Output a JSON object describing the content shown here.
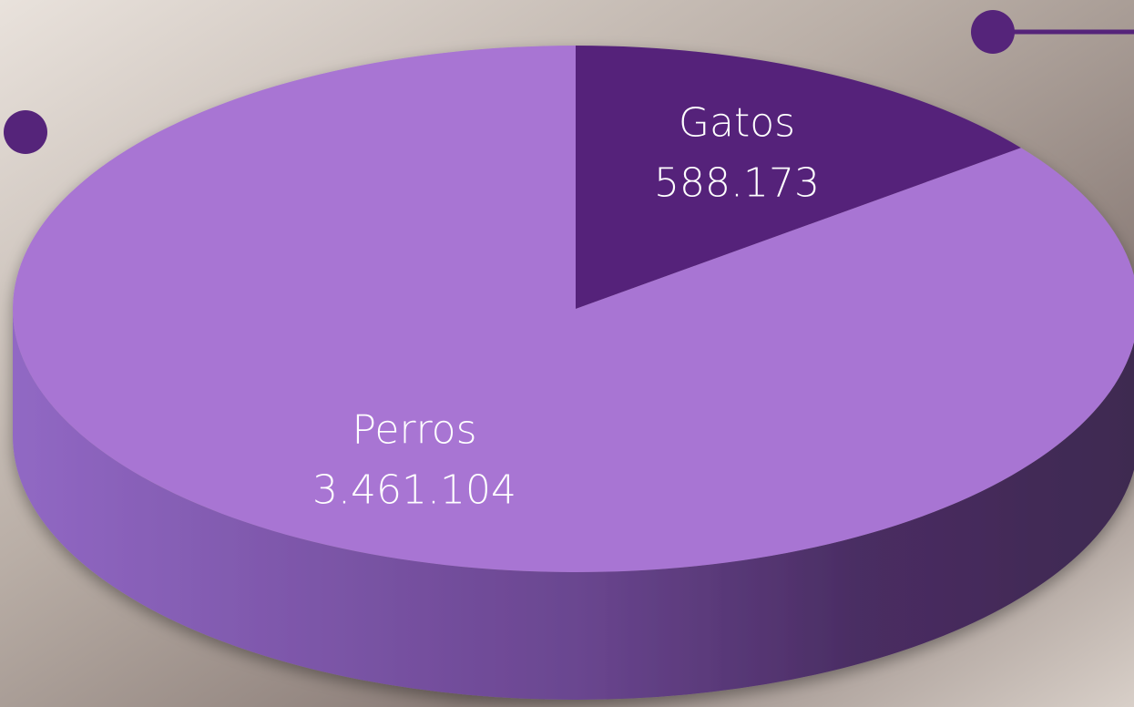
{
  "chart_data": {
    "type": "pie",
    "categories": [
      "Gatos",
      "Perros"
    ],
    "values": [
      588173,
      3461104
    ],
    "value_labels": [
      "588.173",
      "3.461.104"
    ],
    "colors": [
      "#55247a",
      "#a875d3"
    ]
  }
}
